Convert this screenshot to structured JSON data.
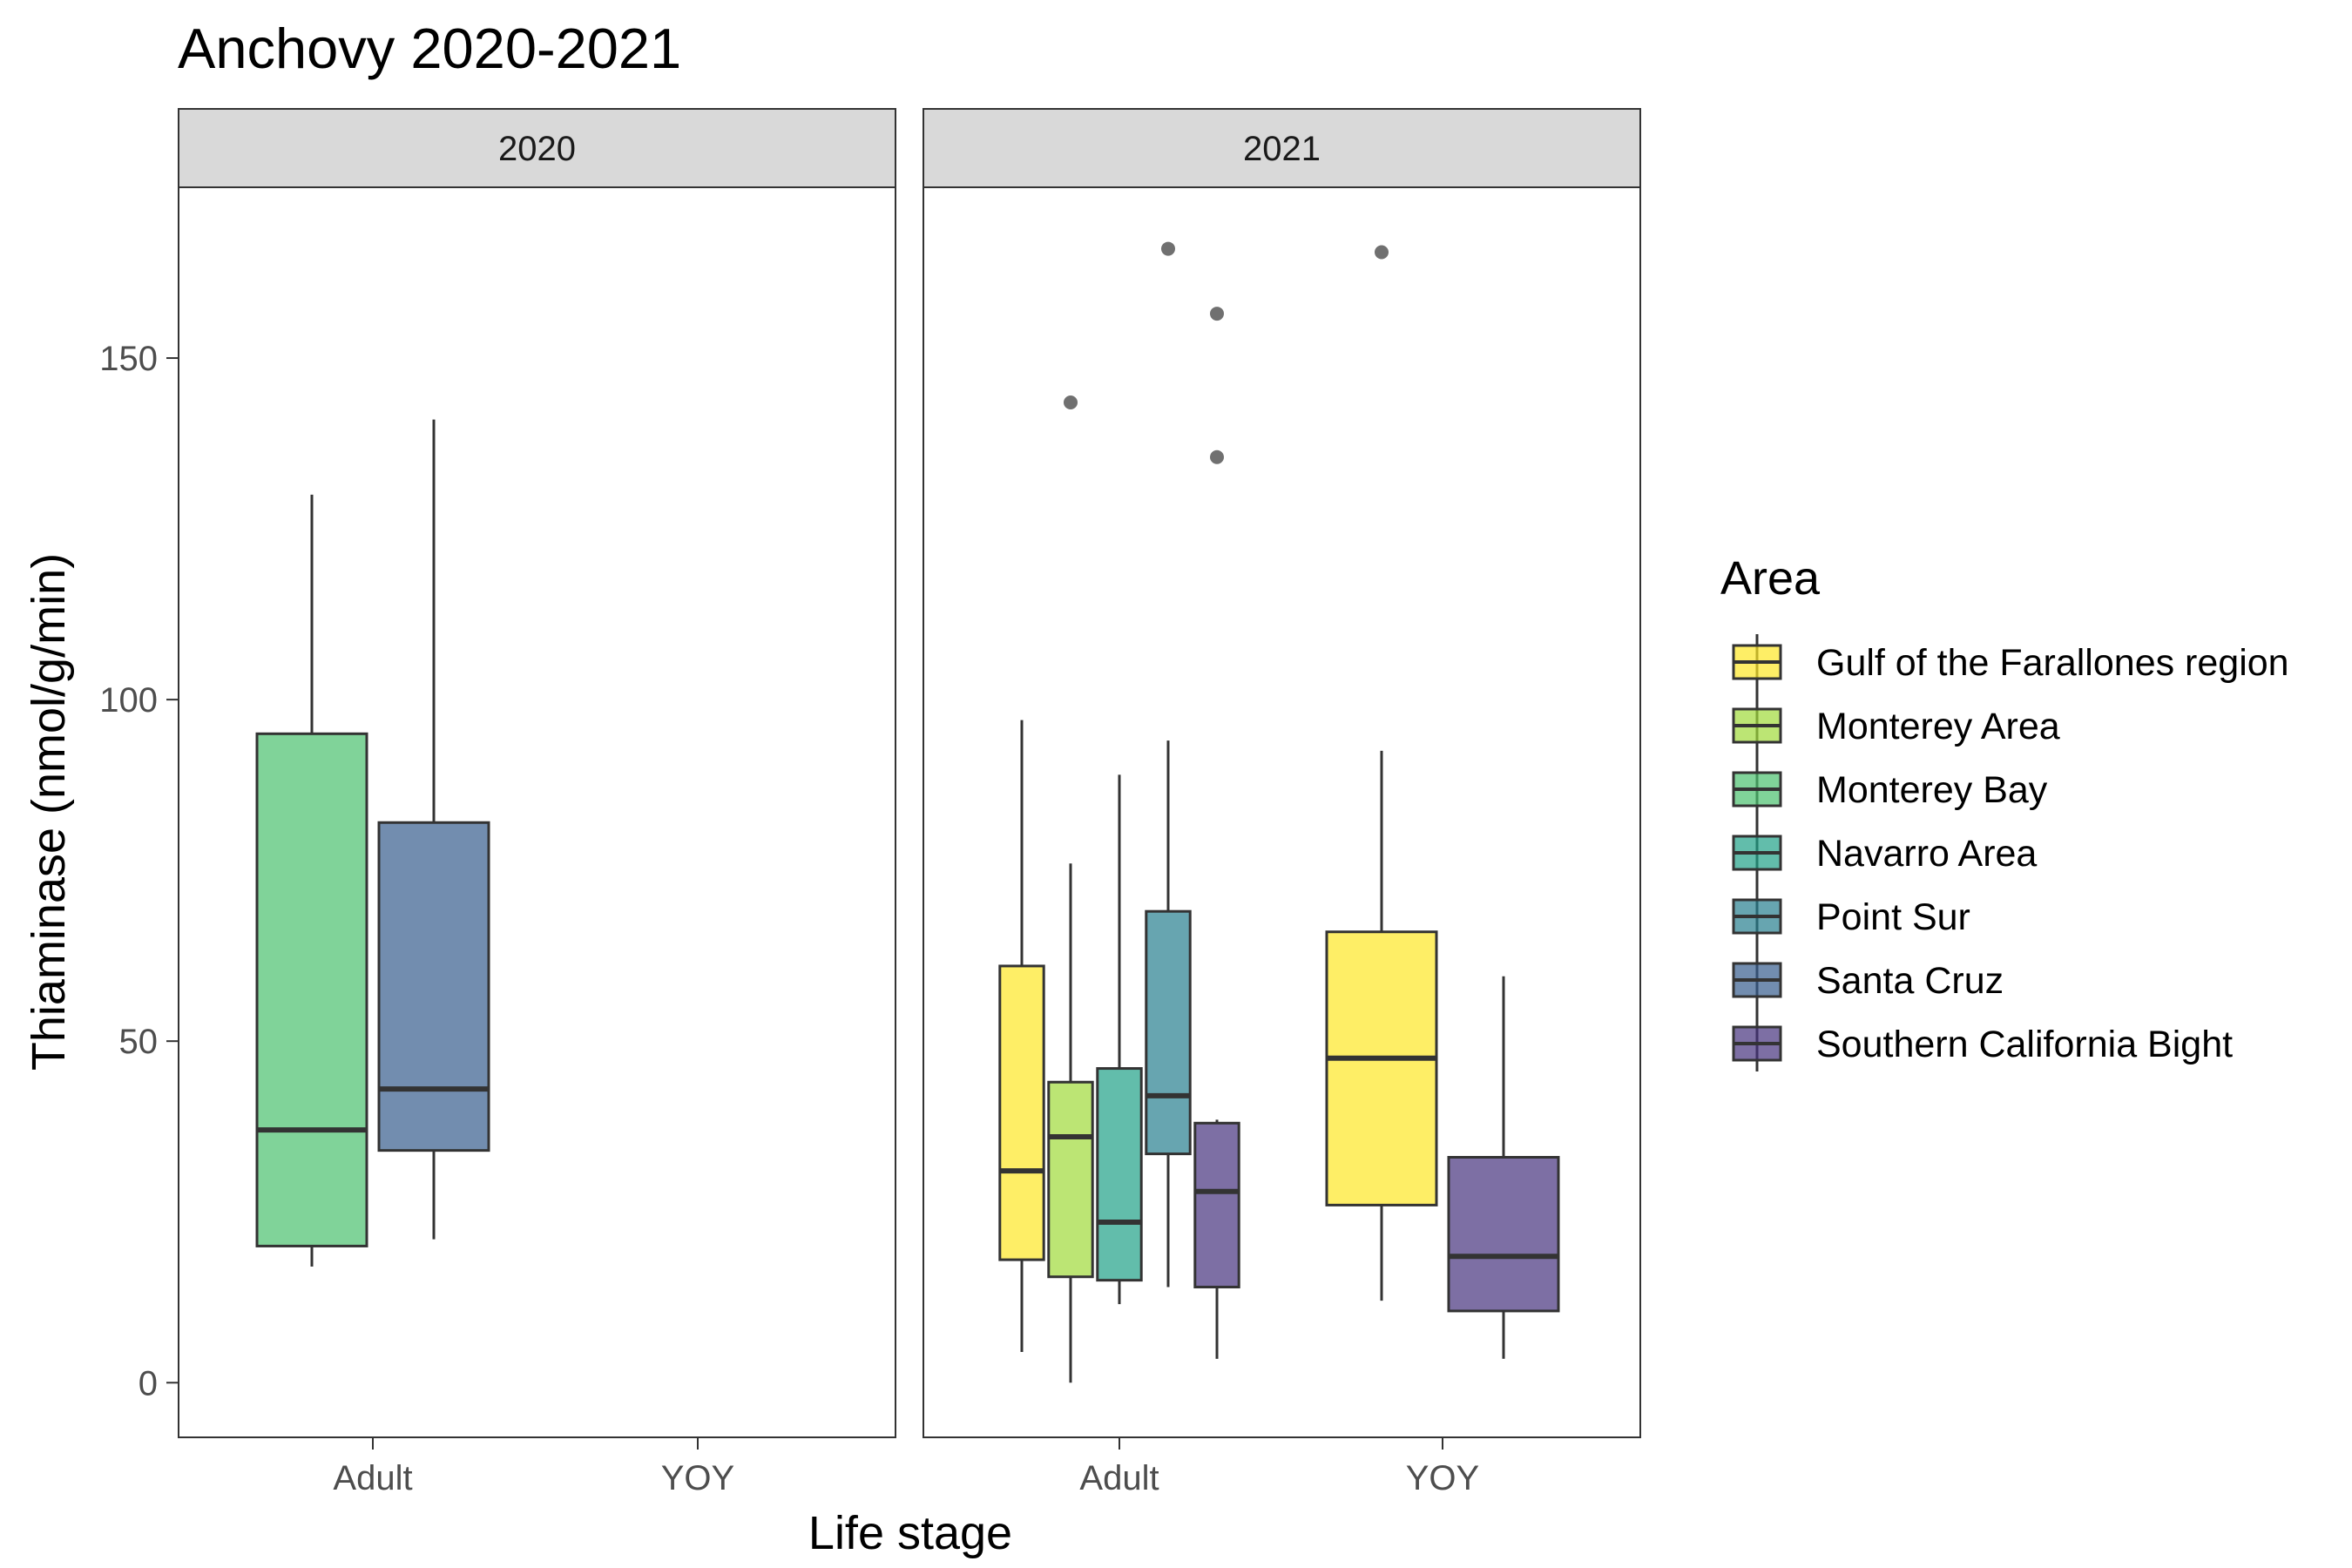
{
  "chart_data": {
    "type": "boxplot",
    "title": "Anchovy 2020-2021",
    "xlabel": "Life stage",
    "ylabel": "Thiaminase (nmol/g/min)",
    "ylim": [
      -8,
      175
    ],
    "yticks": [
      0,
      50,
      100,
      150
    ],
    "categories": [
      "Adult",
      "YOY"
    ],
    "facets": [
      {
        "label": "2020",
        "boxes": [
          {
            "stage": "Adult",
            "area": "Monterey Bay",
            "low": 17,
            "q1": 20,
            "median": 37,
            "q3": 95,
            "high": 130,
            "outliers": []
          },
          {
            "stage": "Adult",
            "area": "Santa Cruz",
            "low": 21,
            "q1": 34,
            "median": 43,
            "q3": 82,
            "high": 141,
            "outliers": []
          }
        ]
      },
      {
        "label": "2021",
        "boxes": [
          {
            "stage": "Adult",
            "area": "Gulf of the Farallones region",
            "low": 4.5,
            "q1": 18,
            "median": 31,
            "q3": 61,
            "high": 97,
            "outliers": []
          },
          {
            "stage": "Adult",
            "area": "Monterey Area",
            "low": 0,
            "q1": 15.5,
            "median": 36,
            "q3": 44,
            "high": 76,
            "outliers": [
              143.5
            ]
          },
          {
            "stage": "Adult",
            "area": "Navarro Area",
            "low": 11.5,
            "q1": 15,
            "median": 23.5,
            "q3": 46,
            "high": 89,
            "outliers": []
          },
          {
            "stage": "Adult",
            "area": "Point Sur",
            "low": 14,
            "q1": 33.5,
            "median": 42,
            "q3": 69,
            "high": 94,
            "outliers": [
              166
            ]
          },
          {
            "stage": "Adult",
            "area": "Southern California Bight",
            "low": 3.5,
            "q1": 14,
            "median": 28,
            "q3": 38,
            "high": 38.5,
            "outliers": [
              156.5,
              135.5
            ]
          },
          {
            "stage": "YOY",
            "area": "Gulf of the Farallones region",
            "low": 12,
            "q1": 26,
            "median": 47.5,
            "q3": 66,
            "high": 92.5,
            "outliers": [
              165.5
            ]
          },
          {
            "stage": "YOY",
            "area": "Southern California Bight",
            "low": 3.5,
            "q1": 10.5,
            "median": 18.5,
            "q3": 33,
            "high": 59.5,
            "outliers": []
          }
        ]
      }
    ],
    "legend": {
      "title": "Area",
      "position": "right",
      "items": [
        {
          "label": "Gulf of the Farallones region",
          "color": "#FDE725"
        },
        {
          "label": "Monterey Area",
          "color": "#A0DA39"
        },
        {
          "label": "Monterey Bay",
          "color": "#4AC16D"
        },
        {
          "label": "Navarro Area",
          "color": "#1FA187"
        },
        {
          "label": "Point Sur",
          "color": "#277F8E"
        },
        {
          "label": "Santa Cruz",
          "color": "#365C8D"
        },
        {
          "label": "Southern California Bight",
          "color": "#46327E"
        }
      ]
    },
    "grid": false,
    "fill_alpha": 0.7
  }
}
